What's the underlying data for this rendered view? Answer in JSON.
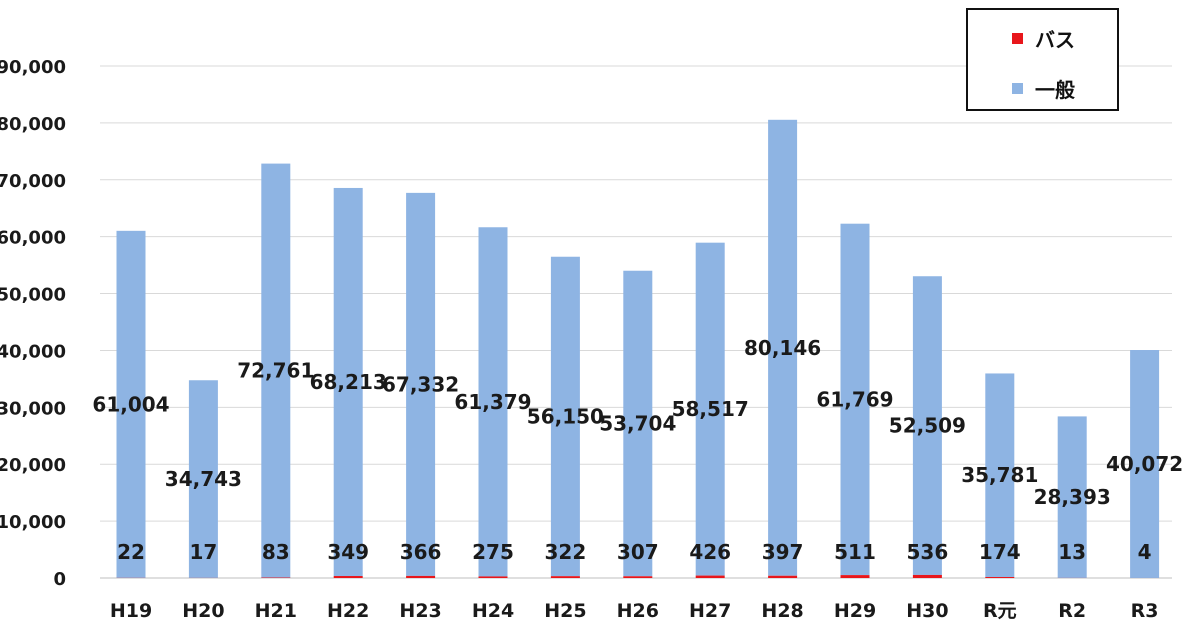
{
  "chart_data": {
    "type": "bar",
    "stacked": true,
    "title": "",
    "xlabel": "",
    "ylabel": "",
    "ylim": [
      0,
      90000
    ],
    "yticks": [
      "0",
      "10,000",
      "20,000",
      "30,000",
      "40,000",
      "50,000",
      "60,000",
      "70,000",
      "80,000",
      "90,000"
    ],
    "grid": true,
    "legend_position": "top-right",
    "categories": [
      "H19",
      "H20",
      "H21",
      "H22",
      "H23",
      "H24",
      "H25",
      "H26",
      "H27",
      "H28",
      "H29",
      "H30",
      "R元",
      "R2",
      "R3"
    ],
    "series": [
      {
        "name": "バス",
        "color": "#e8161b",
        "values": [
          22,
          17,
          83,
          349,
          366,
          275,
          322,
          307,
          426,
          397,
          511,
          536,
          174,
          13,
          4
        ],
        "labels": [
          "22",
          "17",
          "83",
          "349",
          "366",
          "275",
          "322",
          "307",
          "426",
          "397",
          "511",
          "536",
          "174",
          "13",
          "4"
        ]
      },
      {
        "name": "一般",
        "color": "#8eb4e3",
        "values": [
          61004,
          34743,
          72761,
          68213,
          67332,
          61379,
          56150,
          53704,
          58517,
          80146,
          61769,
          52509,
          35781,
          28393,
          40072
        ],
        "labels": [
          "61,004",
          "34,743",
          "72,761",
          "68,213",
          "67,332",
          "61,379",
          "56,150",
          "53,704",
          "58,517",
          "80,146",
          "61,769",
          "52,509",
          "35,781",
          "28,393",
          "40,072"
        ]
      }
    ]
  }
}
